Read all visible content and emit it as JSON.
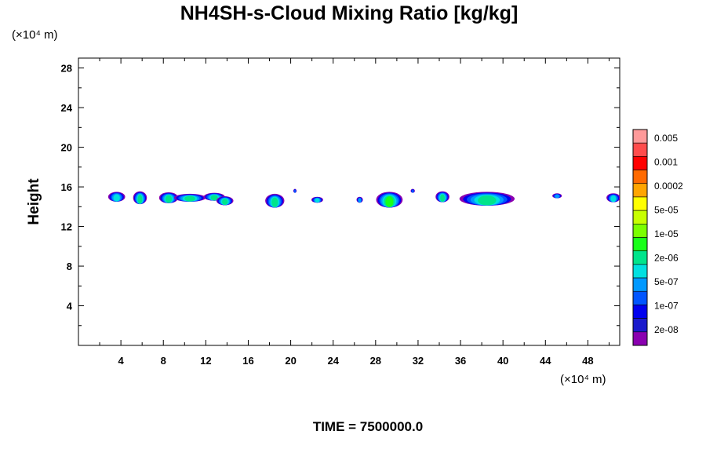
{
  "chart_data": {
    "type": "heatmap",
    "title": "NH4SH-s-Cloud Mixing Ratio [kg/kg]",
    "ylabel": "Height",
    "xunit": "(×10⁴ m)",
    "yunit": "(×10⁴ m)",
    "footer": "TIME = 7500000.0",
    "xlim": [
      0,
      51
    ],
    "ylim": [
      0,
      29
    ],
    "xticks": [
      "4",
      "8",
      "12",
      "16",
      "20",
      "24",
      "28",
      "32",
      "36",
      "40",
      "44",
      "48"
    ],
    "yticks": [
      "4",
      "8",
      "12",
      "16",
      "20",
      "24",
      "28"
    ],
    "colorbar": {
      "labels": [
        "0.005",
        "0.001",
        "0.0002",
        "5e-05",
        "1e-05",
        "2e-06",
        "5e-07",
        "1e-07",
        "2e-08"
      ],
      "colors": [
        "#ff9a9a",
        "#ff4c4c",
        "#ff0000",
        "#ff6a00",
        "#ffa500",
        "#ffff00",
        "#c8ff00",
        "#7bff00",
        "#19ff19",
        "#00e48b",
        "#00e0e0",
        "#0099ff",
        "#0055ff",
        "#0000ee",
        "#1a1acc",
        "#8a00b0"
      ]
    },
    "clouds": [
      {
        "x": 3.6,
        "y": 15.0,
        "w": 1.6,
        "h": 1.0,
        "level": 2
      },
      {
        "x": 5.8,
        "y": 14.9,
        "w": 1.3,
        "h": 1.3,
        "level": 3
      },
      {
        "x": 8.5,
        "y": 14.9,
        "w": 1.8,
        "h": 1.1,
        "level": 3
      },
      {
        "x": 10.5,
        "y": 14.9,
        "w": 3.0,
        "h": 0.8,
        "level": 3
      },
      {
        "x": 12.8,
        "y": 15.0,
        "w": 2.0,
        "h": 0.8,
        "level": 3
      },
      {
        "x": 13.8,
        "y": 14.6,
        "w": 1.6,
        "h": 0.9,
        "level": 3
      },
      {
        "x": 18.5,
        "y": 14.6,
        "w": 1.8,
        "h": 1.4,
        "level": 3
      },
      {
        "x": 20.4,
        "y": 15.6,
        "w": 0.3,
        "h": 0.4,
        "level": 0
      },
      {
        "x": 22.5,
        "y": 14.7,
        "w": 1.1,
        "h": 0.6,
        "level": 2
      },
      {
        "x": 26.5,
        "y": 14.7,
        "w": 0.6,
        "h": 0.6,
        "level": 1
      },
      {
        "x": 29.3,
        "y": 14.7,
        "w": 2.5,
        "h": 1.6,
        "level": 4
      },
      {
        "x": 31.5,
        "y": 15.6,
        "w": 0.4,
        "h": 0.4,
        "level": 0
      },
      {
        "x": 34.3,
        "y": 15.0,
        "w": 1.3,
        "h": 1.1,
        "level": 3
      },
      {
        "x": 38.5,
        "y": 14.8,
        "w": 5.2,
        "h": 1.4,
        "level": 3
      },
      {
        "x": 45.1,
        "y": 15.1,
        "w": 0.9,
        "h": 0.5,
        "level": 1
      },
      {
        "x": 50.4,
        "y": 14.9,
        "w": 1.3,
        "h": 0.9,
        "level": 2
      }
    ]
  }
}
